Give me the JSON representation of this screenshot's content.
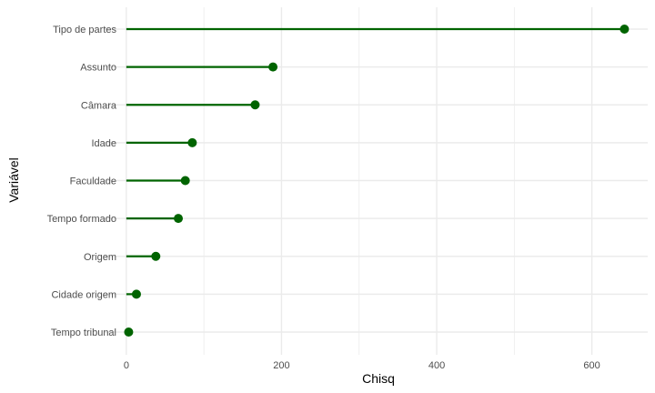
{
  "chart_data": {
    "type": "lollipop",
    "xlabel": "Chisq",
    "ylabel": "Variável",
    "xlim": [
      -28,
      672
    ],
    "xticks": [
      0,
      200,
      400,
      600
    ],
    "x_minor_ticks": [
      100,
      300,
      500
    ],
    "grid": true,
    "colors": {
      "series": "#006400",
      "grid": "#ebebeb",
      "background": "#ffffff"
    },
    "categories": [
      "Tipo de partes",
      "Assunto",
      "Câmara",
      "Idade",
      "Faculdade",
      "Tempo formado",
      "Origem",
      "Cidade origem",
      "Tempo tribunal"
    ],
    "values": [
      642,
      189,
      166,
      85,
      76,
      67,
      38,
      13,
      3
    ]
  }
}
